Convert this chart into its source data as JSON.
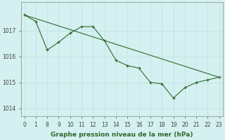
{
  "x_labels": [
    "0",
    "1",
    "8",
    "9",
    "10",
    "11",
    "12",
    "13",
    "14",
    "15",
    "16",
    "17",
    "18",
    "19",
    "20",
    "21",
    "22",
    "23"
  ],
  "y_values": [
    1017.6,
    1017.35,
    1016.25,
    1016.55,
    1016.9,
    1017.15,
    1017.15,
    1016.6,
    1015.85,
    1015.65,
    1015.55,
    1015.0,
    1014.95,
    1014.4,
    1014.8,
    1015.0,
    1015.1,
    1015.2
  ],
  "trend_indices": [
    0,
    17
  ],
  "trend_y": [
    1017.6,
    1015.2
  ],
  "line_color": "#2d6a2d",
  "bg_color": "#d4f0f0",
  "grid_color": "#c0e0e0",
  "xlabel": "Graphe pression niveau de la mer (hPa)",
  "yticks": [
    1014,
    1015,
    1016,
    1017
  ],
  "ylim": [
    1013.7,
    1018.1
  ],
  "xlabel_fontsize": 6.5,
  "tick_fontsize": 5.5
}
